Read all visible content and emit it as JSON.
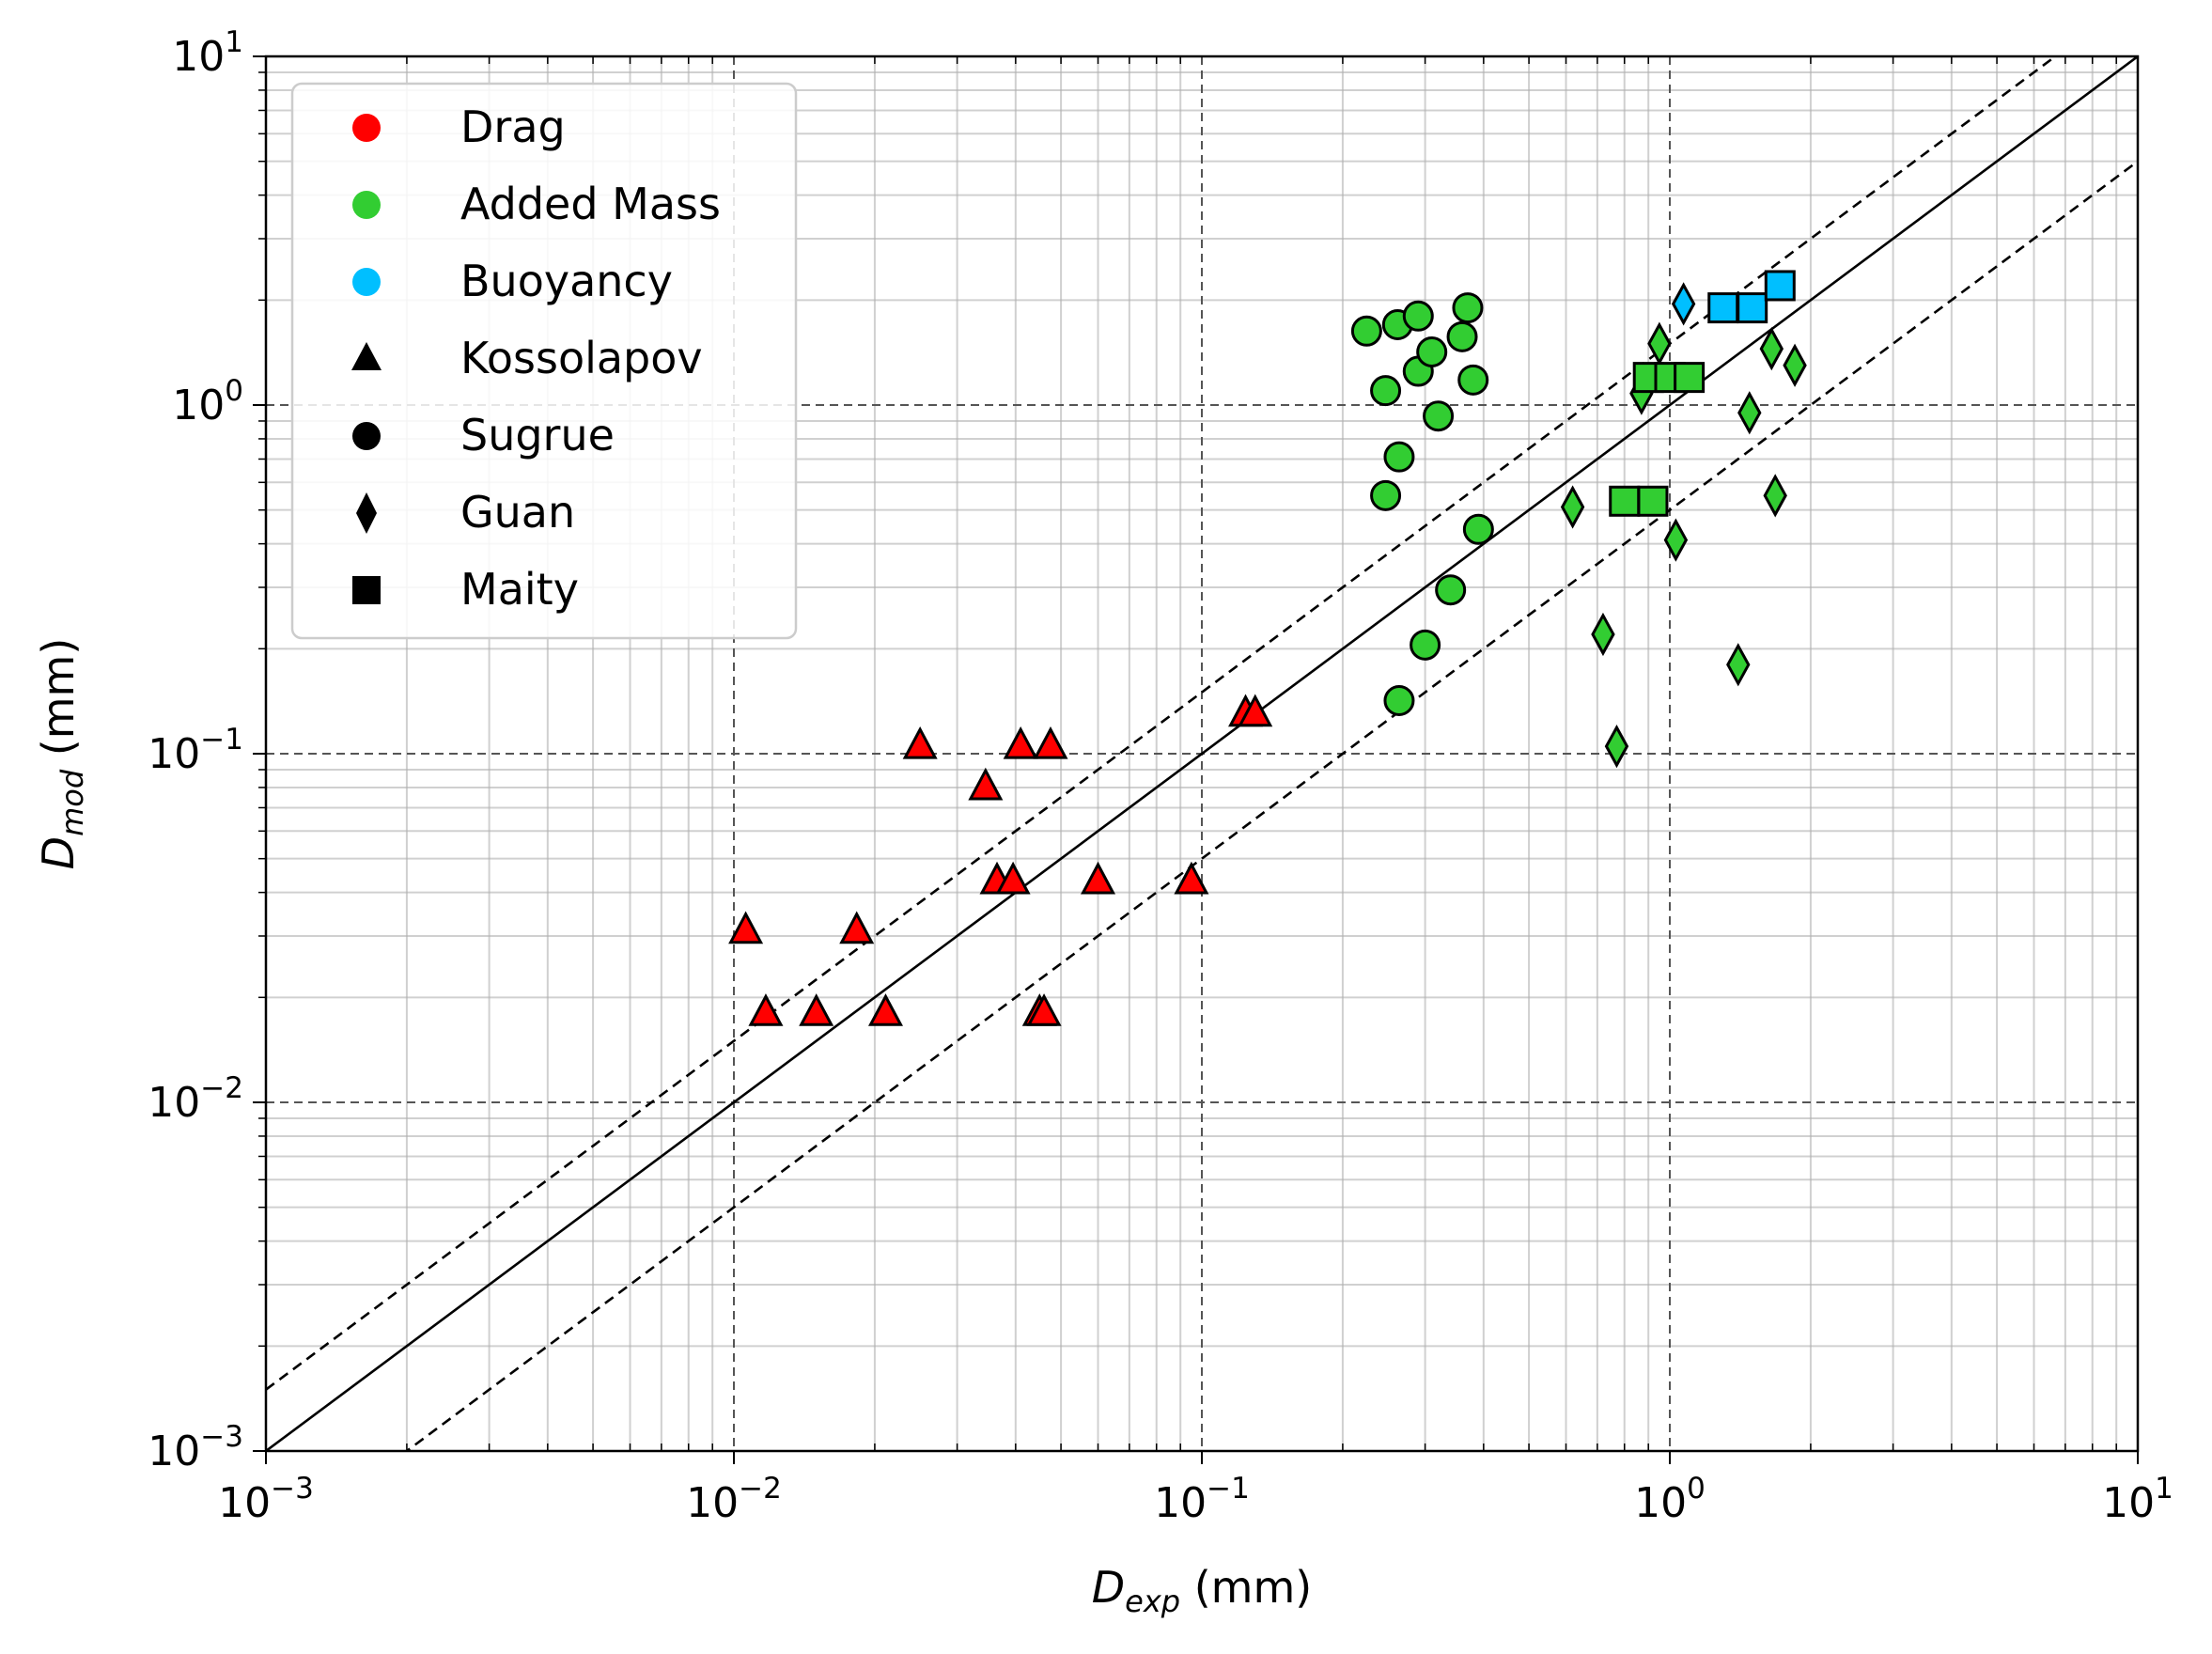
{
  "chart_data": {
    "type": "scatter",
    "xscale": "log",
    "yscale": "log",
    "xlim": [
      0.001,
      10
    ],
    "ylim": [
      0.001,
      10
    ],
    "grid": true,
    "legend_position": "upper-left",
    "xlabel": {
      "main": "D",
      "sub": "exp",
      "suffix": " (mm)"
    },
    "ylabel": {
      "main": "D",
      "sub": "mod",
      "suffix": " (mm)"
    },
    "x_ticks": [
      {
        "value": 0.001,
        "base": "10",
        "exp": "−3"
      },
      {
        "value": 0.01,
        "base": "10",
        "exp": "−2"
      },
      {
        "value": 0.1,
        "base": "10",
        "exp": "−1"
      },
      {
        "value": 1,
        "base": "10",
        "exp": "0"
      },
      {
        "value": 10,
        "base": "10",
        "exp": "1"
      }
    ],
    "y_ticks": [
      {
        "value": 0.001,
        "base": "10",
        "exp": "−3"
      },
      {
        "value": 0.01,
        "base": "10",
        "exp": "−2"
      },
      {
        "value": 0.1,
        "base": "10",
        "exp": "−1"
      },
      {
        "value": 1,
        "base": "10",
        "exp": "0"
      },
      {
        "value": 10,
        "base": "10",
        "exp": "1"
      }
    ],
    "reference_lines": [
      {
        "factor": 1,
        "style": "solid"
      },
      {
        "factor": 1.5,
        "style": "dashed"
      },
      {
        "factor": 0.5,
        "style": "dashed"
      }
    ],
    "colors": {
      "Drag": "#ff0000",
      "Added Mass": "#32cd32",
      "Buoyancy": "#00bfff"
    },
    "legend": [
      {
        "label": "Drag",
        "kind": "color",
        "color": "#ff0000"
      },
      {
        "label": "Added Mass",
        "kind": "color",
        "color": "#32cd32"
      },
      {
        "label": "Buoyancy",
        "kind": "color",
        "color": "#00bfff"
      },
      {
        "label": "Kossolapov",
        "kind": "marker",
        "marker": "triangle"
      },
      {
        "label": "Sugrue",
        "kind": "marker",
        "marker": "circle"
      },
      {
        "label": "Guan",
        "kind": "marker",
        "marker": "diamond"
      },
      {
        "label": "Maity",
        "kind": "marker",
        "marker": "square"
      }
    ],
    "series": [
      {
        "name": "Kossolapov",
        "marker": "triangle",
        "force": "Drag",
        "points": [
          [
            0.0106,
            0.031
          ],
          [
            0.0117,
            0.018
          ],
          [
            0.015,
            0.018
          ],
          [
            0.0183,
            0.031
          ],
          [
            0.0211,
            0.018
          ],
          [
            0.025,
            0.105
          ],
          [
            0.0345,
            0.08
          ],
          [
            0.0365,
            0.043
          ],
          [
            0.0395,
            0.043
          ],
          [
            0.041,
            0.105
          ],
          [
            0.045,
            0.018
          ],
          [
            0.046,
            0.018
          ],
          [
            0.0475,
            0.105
          ],
          [
            0.06,
            0.043
          ],
          [
            0.095,
            0.043
          ],
          [
            0.124,
            0.13
          ],
          [
            0.13,
            0.13
          ]
        ]
      },
      {
        "name": "Sugrue",
        "marker": "circle",
        "force": "Added Mass",
        "points": [
          [
            0.225,
            1.63
          ],
          [
            0.247,
            1.1
          ],
          [
            0.247,
            0.55
          ],
          [
            0.262,
            1.7
          ],
          [
            0.264,
            0.71
          ],
          [
            0.264,
            0.142
          ],
          [
            0.29,
            1.8
          ],
          [
            0.29,
            1.25
          ],
          [
            0.3,
            0.205
          ],
          [
            0.31,
            1.42
          ],
          [
            0.32,
            0.93
          ],
          [
            0.34,
            0.295
          ],
          [
            0.36,
            1.57
          ],
          [
            0.37,
            1.9
          ],
          [
            0.38,
            1.18
          ],
          [
            0.39,
            0.44
          ]
        ]
      },
      {
        "name": "Guan",
        "marker": "diamond",
        "force": "Added Mass",
        "points": [
          [
            0.62,
            0.51
          ],
          [
            0.72,
            0.22
          ],
          [
            0.77,
            0.105
          ],
          [
            0.87,
            1.08
          ],
          [
            0.95,
            1.5
          ],
          [
            1.03,
            0.41
          ],
          [
            1.4,
            0.18
          ],
          [
            1.48,
            0.95
          ],
          [
            1.65,
            1.45
          ],
          [
            1.68,
            0.55
          ],
          [
            1.85,
            1.3
          ]
        ]
      },
      {
        "name": "Guan",
        "marker": "diamond",
        "force": "Buoyancy",
        "points": [
          [
            1.07,
            1.95
          ]
        ]
      },
      {
        "name": "Maity",
        "marker": "square",
        "force": "Added Mass",
        "points": [
          [
            0.8,
            0.53
          ],
          [
            0.92,
            0.53
          ],
          [
            0.9,
            1.2
          ],
          [
            1.0,
            1.2
          ],
          [
            1.1,
            1.2
          ]
        ]
      },
      {
        "name": "Maity",
        "marker": "square",
        "force": "Buoyancy",
        "points": [
          [
            1.3,
            1.9
          ],
          [
            1.5,
            1.9
          ],
          [
            1.72,
            2.2
          ]
        ]
      }
    ]
  }
}
